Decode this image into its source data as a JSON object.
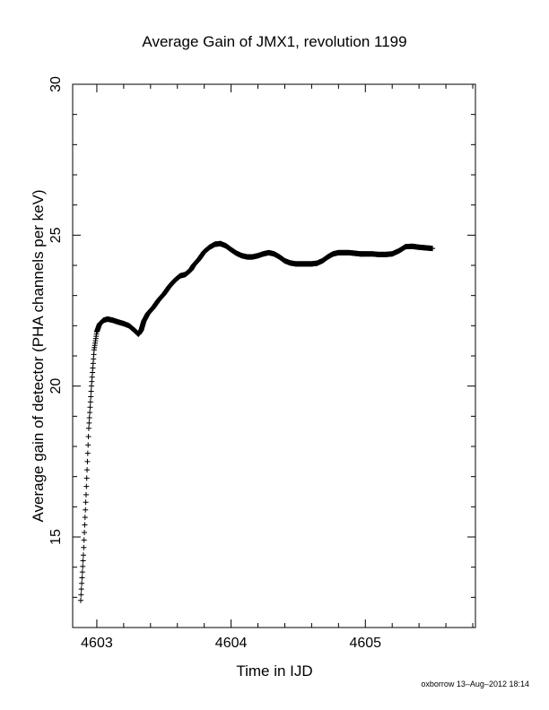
{
  "chart_data": {
    "type": "scatter",
    "title": "Average Gain of JMX1, revolution 1199",
    "xlabel": "Time in IJD",
    "ylabel": "Average gain of detector (PHA channels per keV)",
    "xlim": [
      4602.82,
      4605.82
    ],
    "ylim": [
      12,
      30
    ],
    "xticks": [
      4603,
      4604,
      4605
    ],
    "xtick_labels": [
      "4603",
      "4604",
      "4605"
    ],
    "yticks": [
      15,
      20,
      25,
      30
    ],
    "ytick_labels": [
      "15",
      "20",
      "25",
      "30"
    ],
    "marker": "plus",
    "grid": false,
    "series": [
      {
        "color": "#000000",
        "x": [
          4602.88,
          4602.9,
          4602.92,
          4602.94,
          4602.96,
          4602.98,
          4603.0,
          4603.02,
          4603.05,
          4603.08,
          4603.12,
          4603.16,
          4603.2,
          4603.24,
          4603.28,
          4603.31,
          4603.33,
          4603.35,
          4603.38,
          4603.42,
          4603.46,
          4603.5,
          4603.54,
          4603.58,
          4603.62,
          4603.66,
          4603.7,
          4603.72,
          4603.76,
          4603.8,
          4603.84,
          4603.88,
          4603.92,
          4603.96,
          4604.0,
          4604.04,
          4604.08,
          4604.12,
          4604.16,
          4604.2,
          4604.24,
          4604.28,
          4604.32,
          4604.36,
          4604.4,
          4604.44,
          4604.48,
          4604.52,
          4604.56,
          4604.6,
          4604.64,
          4604.68,
          4604.72,
          4604.76,
          4604.8,
          4604.84,
          4604.88,
          4604.92,
          4604.96,
          4605.0,
          4605.05,
          4605.1,
          4605.15,
          4605.2,
          4605.25,
          4605.3,
          4605.35,
          4605.4,
          4605.45,
          4605.5
        ],
        "y": [
          12.9,
          14.4,
          16.4,
          18.6,
          20.0,
          21.2,
          21.8,
          22.05,
          22.18,
          22.22,
          22.18,
          22.12,
          22.07,
          22.0,
          21.85,
          21.72,
          21.85,
          22.15,
          22.4,
          22.6,
          22.85,
          23.05,
          23.3,
          23.5,
          23.65,
          23.7,
          23.85,
          24.0,
          24.2,
          24.45,
          24.6,
          24.7,
          24.72,
          24.65,
          24.52,
          24.4,
          24.32,
          24.28,
          24.28,
          24.32,
          24.38,
          24.42,
          24.38,
          24.28,
          24.15,
          24.08,
          24.05,
          24.05,
          24.05,
          24.05,
          24.07,
          24.15,
          24.28,
          24.38,
          24.42,
          24.42,
          24.42,
          24.4,
          24.38,
          24.38,
          24.38,
          24.36,
          24.36,
          24.38,
          24.48,
          24.62,
          24.63,
          24.6,
          24.58,
          24.56
        ]
      }
    ]
  },
  "footer": {
    "text": "oxborrow 13–Aug–2012 18:14"
  }
}
